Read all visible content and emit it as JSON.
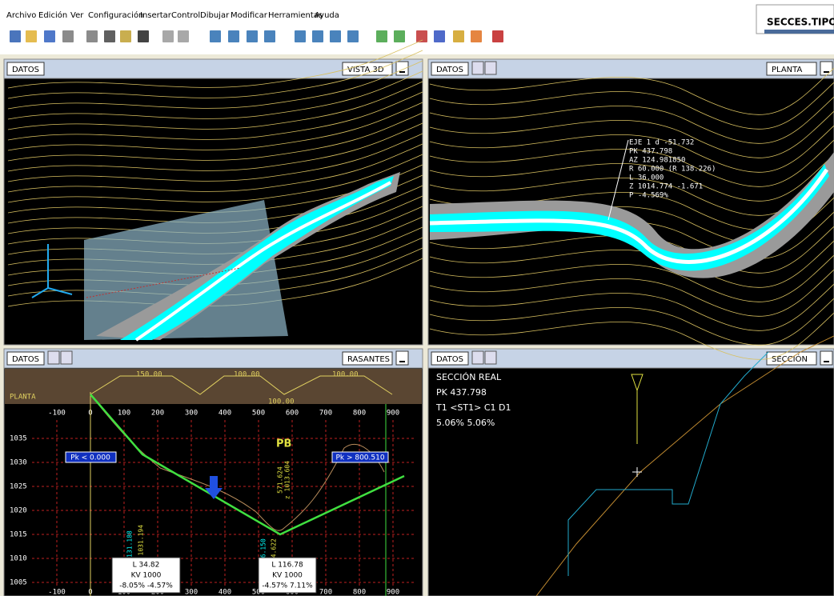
{
  "menu": [
    "Archivo",
    "Edición",
    "Ver",
    "Configuración",
    "Insertar",
    "Control",
    "Dibujar",
    "Modificar",
    "Herramientas",
    "Ayuda"
  ],
  "window_title": "SECCES.TIPO",
  "panels": [
    {
      "label": "DATOS",
      "title": "VISTA 3D"
    },
    {
      "label": "DATOS",
      "title": "PLANTA"
    },
    {
      "label": "DATOS",
      "title": "RASANTES"
    },
    {
      "label": "DATOS",
      "title": "SECCIÓN"
    }
  ],
  "planta_annotation": [
    "EJE 1 d -51.732",
    "PK 437.798",
    "AZ 124.981850",
    "R 60.000 (R 138.226)",
    "L 36.000",
    "Z 1014.774 -1.671",
    "P -4.569%"
  ],
  "rasantes": {
    "band_label": "PLANTA",
    "band_values": [
      "150.00",
      "100.00",
      "100.00",
      "100.00"
    ],
    "x_labels": [
      "-100",
      "0",
      "100",
      "200",
      "300",
      "400",
      "500",
      "600",
      "700",
      "800",
      "900"
    ],
    "y_labels": [
      "1035",
      "1030",
      "1025",
      "1020",
      "1015",
      "1010",
      "1005"
    ],
    "start": "Pk < 0.000",
    "end": "Pk > 800.510",
    "marker": "PB",
    "vertical_labels": [
      "131.188",
      "z 1031.194",
      "526.150",
      "584.622",
      "571.624",
      "z 1013.604"
    ],
    "curves": [
      [
        "L 34.82",
        "KV 1000",
        "-8.05% -4.57%"
      ],
      [
        "L 116.78",
        "KV 1000",
        "-4.57% 7.11%"
      ]
    ]
  },
  "seccion_info": [
    "SECCIÓN REAL",
    "PK 437.798",
    "T1 <ST1> C1 D1",
    "5.06% 5.06%"
  ]
}
